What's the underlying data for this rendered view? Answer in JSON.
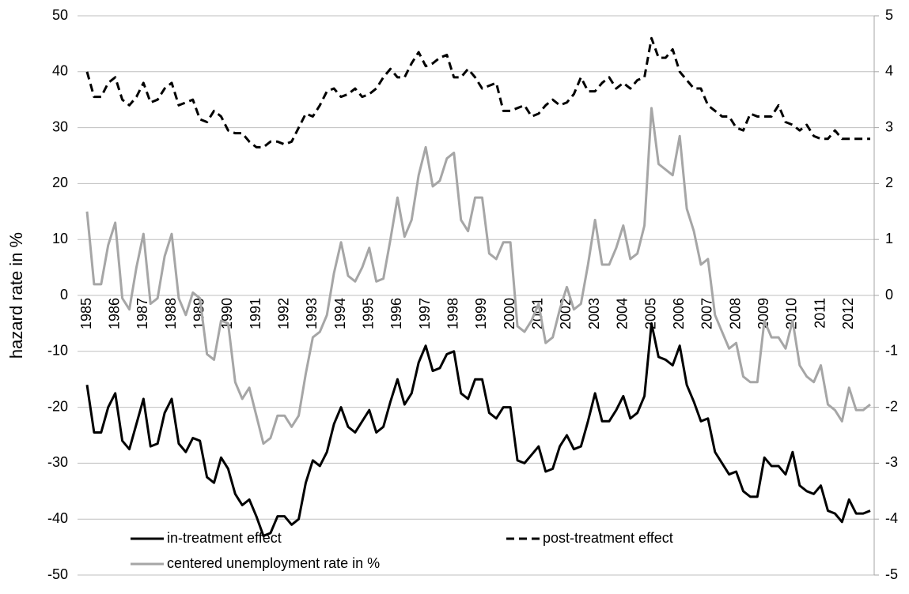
{
  "chart_data": {
    "type": "line",
    "y_label": "hazard rate in %",
    "categories": [
      "1985",
      null,
      null,
      null,
      "1986",
      null,
      null,
      null,
      "1987",
      null,
      null,
      null,
      "1988",
      null,
      null,
      null,
      "1989",
      null,
      null,
      null,
      "1990",
      null,
      null,
      null,
      "1991",
      null,
      null,
      null,
      "1992",
      null,
      null,
      null,
      "1993",
      null,
      null,
      null,
      "1994",
      null,
      null,
      null,
      "1995",
      null,
      null,
      null,
      "1996",
      null,
      null,
      null,
      "1997",
      null,
      null,
      null,
      "1998",
      null,
      null,
      null,
      "1999",
      null,
      null,
      null,
      "2000",
      null,
      null,
      null,
      "2001",
      null,
      null,
      null,
      "2002",
      null,
      null,
      null,
      "2003",
      null,
      null,
      null,
      "2004",
      null,
      null,
      null,
      "2005",
      null,
      null,
      null,
      "2006",
      null,
      null,
      null,
      "2007",
      null,
      null,
      null,
      "2008",
      null,
      null,
      null,
      "2009",
      null,
      null,
      null,
      "2010",
      null,
      null,
      null,
      "2011",
      null,
      null,
      null,
      "2012",
      null,
      null,
      null
    ],
    "series": [
      {
        "name": "in-treatment effect",
        "color": "#000000",
        "line_style": "solid",
        "values": [
          -16,
          -24.5,
          -24.5,
          -20,
          -17.5,
          -26,
          -27.5,
          -23,
          -18.5,
          -27,
          -26.5,
          -21,
          -18.5,
          -26.5,
          -28,
          -25.5,
          -26,
          -32.5,
          -33.5,
          -29,
          -31,
          -35.5,
          -37.5,
          -36.5,
          -39.5,
          -43,
          -42.5,
          -39.5,
          -39.5,
          -41,
          -40,
          -33.5,
          -29.5,
          -30.5,
          -28,
          -23,
          -20,
          -23.5,
          -24.5,
          -22.5,
          -20.5,
          -24.5,
          -23.5,
          -19,
          -15,
          -19.5,
          -17.5,
          -12,
          -9,
          -13.5,
          -13,
          -10.5,
          -10,
          -17.5,
          -18.5,
          -15,
          -15,
          -21,
          -22,
          -20,
          -20,
          -29.5,
          -30,
          -28.5,
          -27,
          -31.5,
          -31,
          -27,
          -25,
          -27.5,
          -27,
          -22.5,
          -17.5,
          -22.5,
          -22.5,
          -20.5,
          -18,
          -22,
          -21,
          -18,
          -5,
          -11,
          -11.5,
          -12.5,
          -9,
          -16,
          -19,
          -22.5,
          -22,
          -28,
          -30,
          -32,
          -31.5,
          -35,
          -36,
          -36,
          -29,
          -30.5,
          -30.5,
          -32,
          -28,
          -34,
          -35,
          -35.5,
          -34,
          -38.5,
          -39,
          -40.5,
          -36.5,
          -39,
          -39,
          -38.5
        ]
      },
      {
        "name": "post-treatment effect",
        "color": "#000000",
        "line_style": "dashed",
        "values": [
          40,
          35.5,
          35.5,
          38,
          39,
          35,
          34,
          35.5,
          38,
          34.5,
          35,
          37,
          38,
          34,
          34.5,
          35,
          31.5,
          31,
          33,
          32,
          29.5,
          29,
          29,
          27.5,
          26.5,
          26.5,
          27.5,
          27.5,
          27,
          27.5,
          30,
          32.5,
          32,
          34,
          36.5,
          37,
          35.5,
          36,
          37,
          35.5,
          36,
          37,
          39,
          40.5,
          39,
          39,
          41.5,
          43.5,
          41,
          41.5,
          42.5,
          43,
          39,
          39,
          40.5,
          39,
          37,
          37.5,
          38,
          33,
          33,
          33.5,
          34,
          32,
          32.5,
          34,
          35,
          34,
          34.5,
          36,
          39,
          36.5,
          36.5,
          38,
          39,
          37,
          38,
          37,
          38.5,
          39,
          46,
          42.5,
          42.5,
          44,
          40,
          38.5,
          37,
          37,
          34,
          33,
          32,
          32,
          30,
          29.5,
          32.5,
          32,
          32,
          32,
          34,
          31,
          30.5,
          29.5,
          30.5,
          28.5,
          28,
          28,
          29.5,
          28,
          28,
          28,
          28,
          28
        ]
      },
      {
        "name": "centered unemployment rate in %",
        "color": "#a6a6a6",
        "line_style": "solid",
        "axis": "y2",
        "values": [
          1.5,
          0.2,
          0.2,
          0.9,
          1.3,
          -0.05,
          -0.25,
          0.5,
          1.1,
          -0.15,
          -0.05,
          0.7,
          1.1,
          -0.05,
          -0.35,
          0.05,
          -0.05,
          -1.05,
          -1.15,
          -0.45,
          -0.5,
          -1.55,
          -1.85,
          -1.65,
          -2.15,
          -2.65,
          -2.55,
          -2.15,
          -2.15,
          -2.35,
          -2.15,
          -1.4,
          -0.75,
          -0.65,
          -0.35,
          0.4,
          0.95,
          0.35,
          0.25,
          0.5,
          0.85,
          0.25,
          0.3,
          1.0,
          1.75,
          1.05,
          1.35,
          2.15,
          2.65,
          1.95,
          2.05,
          2.45,
          2.55,
          1.35,
          1.15,
          1.75,
          1.75,
          0.75,
          0.65,
          0.95,
          0.95,
          -0.55,
          -0.65,
          -0.45,
          -0.15,
          -0.85,
          -0.75,
          -0.25,
          0.15,
          -0.25,
          -0.15,
          0.55,
          1.35,
          0.55,
          0.55,
          0.85,
          1.25,
          0.65,
          0.75,
          1.25,
          3.35,
          2.35,
          2.25,
          2.15,
          2.85,
          1.55,
          1.15,
          0.55,
          0.65,
          -0.35,
          -0.65,
          -0.95,
          -0.85,
          -1.45,
          -1.55,
          -1.55,
          -0.45,
          -0.75,
          -0.75,
          -0.95,
          -0.45,
          -1.25,
          -1.45,
          -1.55,
          -1.25,
          -1.95,
          -2.05,
          -2.25,
          -1.65,
          -2.05,
          -2.05,
          -1.95
        ]
      }
    ],
    "ylim": [
      -50,
      50
    ],
    "yticks": [
      -50,
      -40,
      -30,
      -20,
      -10,
      0,
      10,
      20,
      30,
      40,
      50
    ],
    "y2lim": [
      -5,
      5
    ],
    "y2ticks": [
      -5,
      -4,
      -3,
      -2,
      -1,
      0,
      1,
      2,
      3,
      4,
      5
    ],
    "grid": true
  }
}
